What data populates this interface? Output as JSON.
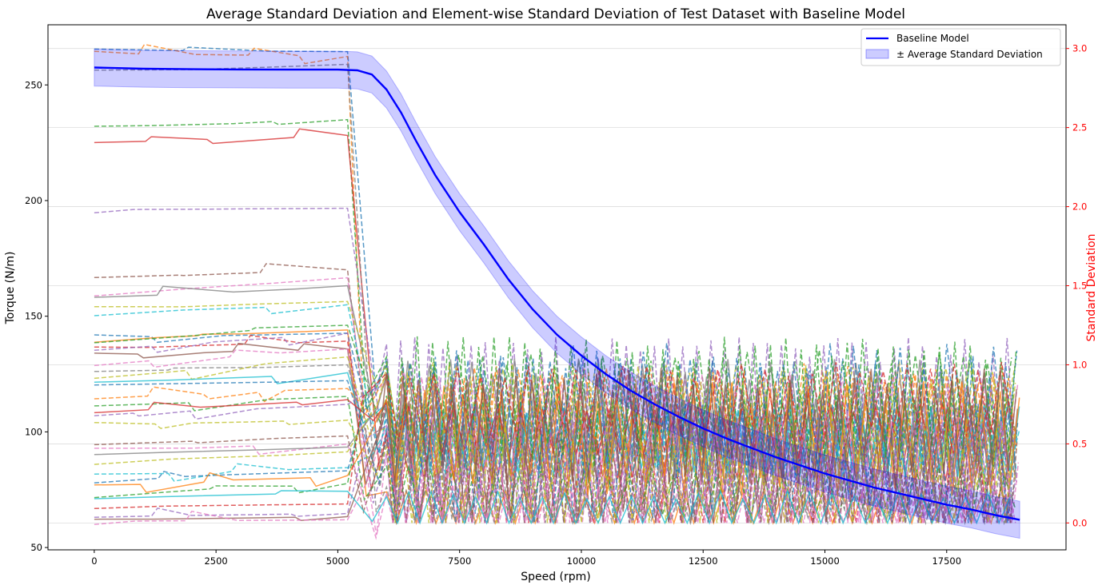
{
  "chart_data": {
    "type": "line",
    "title": "Average Standard Deviation and Element-wise Standard Deviation of Test Dataset with Baseline Model",
    "xlabel": "Speed (rpm)",
    "ylabel": "Torque (N/m)",
    "ylabel_right": "Standard Deviation",
    "xlim": [
      -950,
      19950
    ],
    "ylim": [
      49,
      276
    ],
    "ylim_right": [
      -0.17,
      3.15
    ],
    "x_ticks": [
      0,
      2500,
      5000,
      7500,
      10000,
      12500,
      15000,
      17500
    ],
    "y_ticks": [
      50,
      100,
      150,
      200,
      250
    ],
    "y_ticks_right": [
      0.0,
      0.5,
      1.0,
      1.5,
      2.0,
      2.5,
      3.0
    ],
    "x_tick_labels": [
      "0",
      "2500",
      "5000",
      "7500",
      "10000",
      "12500",
      "15000",
      "17500"
    ],
    "y_tick_labels": [
      "50",
      "100",
      "150",
      "200",
      "250"
    ],
    "y_tick_labels_right": [
      "0.0",
      "0.5",
      "1.0",
      "1.5",
      "2.0",
      "2.5",
      "3.0"
    ],
    "right_axis_color": "#ff0000",
    "grid_right": true,
    "legend_position": "top-right",
    "legend": [
      {
        "label": "Baseline Model",
        "kind": "line",
        "color": "#0000ff"
      },
      {
        "label": "± Average Standard Deviation",
        "kind": "band",
        "color": "#0000ff"
      }
    ],
    "baseline": {
      "name": "Baseline Model",
      "color": "#0000ff",
      "points": [
        [
          0,
          257.5
        ],
        [
          1000,
          257
        ],
        [
          2000,
          256.8
        ],
        [
          3000,
          256.7
        ],
        [
          4000,
          256.6
        ],
        [
          5000,
          256.6
        ],
        [
          5400,
          256.3
        ],
        [
          5700,
          254.5
        ],
        [
          6000,
          248
        ],
        [
          6300,
          238
        ],
        [
          6600,
          226
        ],
        [
          7000,
          211
        ],
        [
          7500,
          195
        ],
        [
          8000,
          181
        ],
        [
          8500,
          166
        ],
        [
          9000,
          153
        ],
        [
          9500,
          142
        ],
        [
          10000,
          133
        ],
        [
          10500,
          125
        ],
        [
          11000,
          118
        ],
        [
          11500,
          112
        ],
        [
          12000,
          106.5
        ],
        [
          12500,
          101.5
        ],
        [
          13000,
          97
        ],
        [
          13500,
          93
        ],
        [
          14000,
          89
        ],
        [
          14500,
          85.5
        ],
        [
          15000,
          82
        ],
        [
          15500,
          79
        ],
        [
          16000,
          76
        ],
        [
          16500,
          73.5
        ],
        [
          17000,
          71
        ],
        [
          17500,
          68.5
        ],
        [
          18000,
          66.5
        ],
        [
          18500,
          64
        ],
        [
          19000,
          62
        ]
      ],
      "band_halfwidth": 8
    },
    "std_series": {
      "description": "Element-wise standard deviation per test sample (right axis), about 40 dashed/solid traces",
      "count": 40,
      "flat_region_end_rpm": 5200,
      "start_values": [
        2.99,
        2.97,
        2.5,
        2.4,
        1.98,
        1.55,
        1.45,
        1.42,
        1.35,
        1.33,
        1.17,
        1.16,
        1.15,
        1.1,
        1.09,
        1.06,
        1.0,
        0.95,
        0.92,
        0.88,
        0.87,
        0.79,
        0.74,
        0.7,
        0.68,
        0.5,
        0.46,
        0.43,
        0.38,
        0.3,
        0.27,
        0.23,
        0.18,
        0.1,
        0.04,
        0.02,
        0.01,
        2.85,
        0.62,
        0.15
      ],
      "end_values": [
        2.98,
        2.95,
        2.55,
        2.45,
        1.99,
        1.6,
        1.55,
        1.5,
        1.4,
        1.38,
        1.2,
        1.22,
        1.25,
        1.15,
        1.2,
        1.1,
        1.1,
        1.0,
        1.05,
        0.95,
        0.9,
        0.85,
        0.8,
        0.78,
        0.75,
        0.55,
        0.5,
        0.48,
        0.45,
        0.35,
        0.33,
        0.3,
        0.25,
        0.12,
        0.06,
        0.04,
        0.02,
        2.9,
        0.65,
        0.2
      ],
      "tail_center": 0.4,
      "tail_amplitude": 0.45,
      "colors": [
        "#1f77b4",
        "#ff7f0e",
        "#2ca02c",
        "#d62728",
        "#9467bd",
        "#8c564b",
        "#e377c2",
        "#7f7f7f",
        "#bcbd22",
        "#17becf"
      ]
    }
  }
}
